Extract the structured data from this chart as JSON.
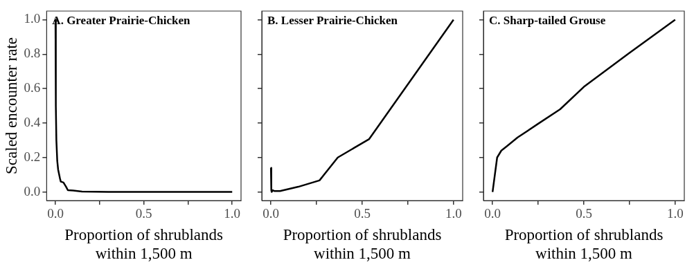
{
  "chart_data": [
    {
      "type": "line",
      "title": "A. Greater Prairie-Chicken",
      "xlabel": "Proportion of shrublands\nwithin 1,500 m",
      "ylabel": "Scaled encounter rate",
      "series": [
        {
          "color": "#000000",
          "x": [
            0,
            0.002,
            0.005,
            0.01,
            0.015,
            0.025,
            0.03,
            0.045,
            0.06,
            0.07,
            0.1,
            0.15,
            0.3,
            1
          ],
          "values": [
            1.0,
            0.5,
            0.3,
            0.18,
            0.13,
            0.08,
            0.06,
            0.055,
            0.03,
            0.01,
            0.008,
            0.002,
            0,
            0
          ]
        }
      ],
      "xlim": [
        -0.05,
        1.05
      ],
      "ylim": [
        -0.05,
        1.05
      ],
      "xticks": [
        {
          "value": 0,
          "label": "0.0"
        },
        {
          "value": 0.25,
          "label": null
        },
        {
          "value": 0.5,
          "label": "0.5"
        },
        {
          "value": 0.75,
          "label": null
        },
        {
          "value": 1,
          "label": "1.0"
        }
      ],
      "yticks": [
        {
          "value": 0,
          "label": "0.0"
        },
        {
          "value": 0.2,
          "label": "0.2"
        },
        {
          "value": 0.4,
          "label": "0.4"
        },
        {
          "value": 0.6,
          "label": "0.6"
        },
        {
          "value": 0.8,
          "label": "0.8"
        },
        {
          "value": 1,
          "label": "1.0"
        }
      ],
      "grid": false,
      "marker": "none",
      "line_style": "solid"
    },
    {
      "type": "line",
      "title": "B. Lesser Prairie-Chicken",
      "xlabel": "Proportion of shrublands\nwithin 1,500 m",
      "series": [
        {
          "color": "#000000",
          "x": [
            0,
            0.002,
            0.004,
            0.01,
            0.02,
            0.05,
            0.15,
            0.266,
            0.366,
            0.538,
            1
          ],
          "values": [
            0.14,
            0.01,
            0.0,
            0.01,
            0.005,
            0.005,
            0.03,
            0.067,
            0.2,
            0.307,
            1.0
          ]
        }
      ],
      "xlim": [
        -0.05,
        1.05
      ],
      "ylim": [
        -0.05,
        1.05
      ],
      "xticks": [
        {
          "value": 0,
          "label": "0.0"
        },
        {
          "value": 0.25,
          "label": null
        },
        {
          "value": 0.5,
          "label": "0.5"
        },
        {
          "value": 0.75,
          "label": null
        },
        {
          "value": 1,
          "label": "1.0"
        }
      ],
      "yticks": [
        {
          "value": 0,
          "label": null
        },
        {
          "value": 0.2,
          "label": null
        },
        {
          "value": 0.4,
          "label": null
        },
        {
          "value": 0.6,
          "label": null
        },
        {
          "value": 0.8,
          "label": null
        },
        {
          "value": 1,
          "label": null
        }
      ],
      "tick_labels": "x",
      "grid": false,
      "marker": "none",
      "line_style": "solid"
    },
    {
      "type": "line",
      "title": "C. Sharp-tailed Grouse",
      "xlabel": "Proportion of shrublands\nwithin 1,500 m",
      "series": [
        {
          "color": "#000000",
          "x": [
            0,
            0.025,
            0.048,
            0.078,
            0.137,
            0.25,
            0.37,
            0.5,
            0.747,
            1
          ],
          "values": [
            0,
            0.2,
            0.24,
            0.265,
            0.316,
            0.396,
            0.48,
            0.61,
            0.805,
            1.0
          ]
        }
      ],
      "xlim": [
        -0.05,
        1.05
      ],
      "ylim": [
        -0.05,
        1.05
      ],
      "xticks": [
        {
          "value": 0,
          "label": "0.0"
        },
        {
          "value": 0.25,
          "label": null
        },
        {
          "value": 0.5,
          "label": "0.5"
        },
        {
          "value": 0.75,
          "label": null
        },
        {
          "value": 1,
          "label": "1.0"
        }
      ],
      "yticks": [
        {
          "value": 0,
          "label": null
        },
        {
          "value": 0.2,
          "label": null
        },
        {
          "value": 0.4,
          "label": null
        },
        {
          "value": 0.6,
          "label": null
        },
        {
          "value": 0.8,
          "label": null
        },
        {
          "value": 1,
          "label": null
        }
      ],
      "tick_labels": "x",
      "grid": false,
      "marker": "none",
      "line_style": "solid"
    }
  ]
}
